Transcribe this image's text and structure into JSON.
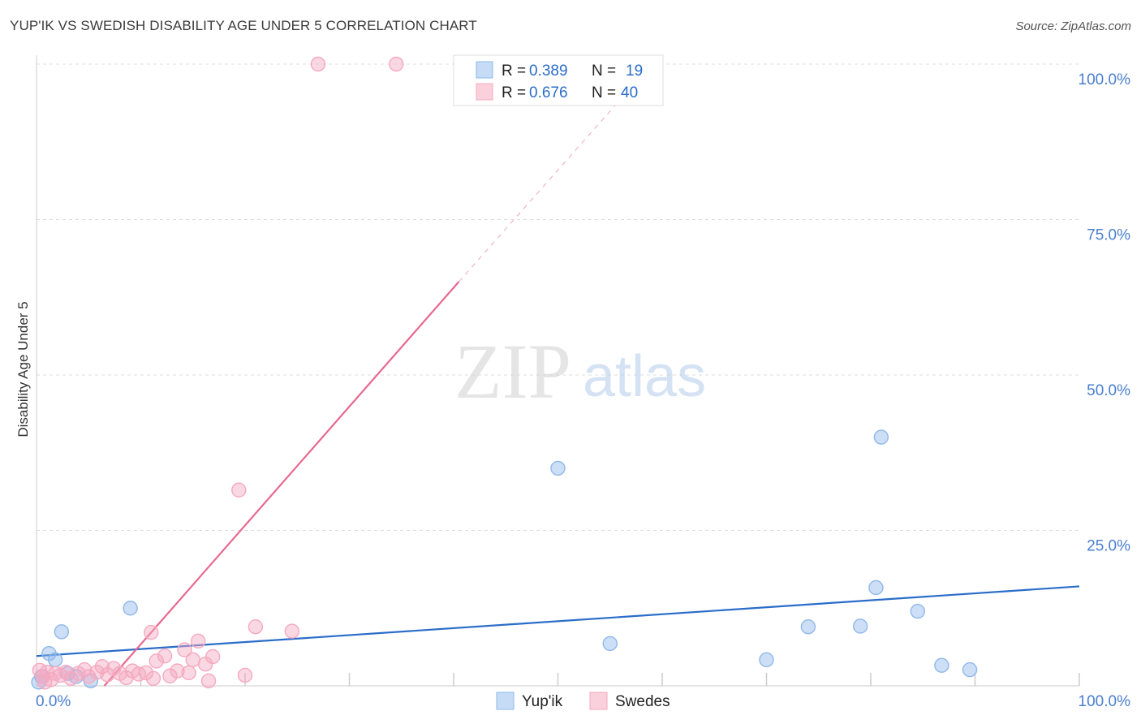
{
  "chart_data": {
    "type": "scatter",
    "title": "YUP'IK VS SWEDISH DISABILITY AGE UNDER 5 CORRELATION CHART",
    "source": "Source: ZipAtlas.com",
    "xlabel": "",
    "ylabel": "Disability Age Under 5",
    "xlim": [
      0,
      100
    ],
    "ylim": [
      0,
      100
    ],
    "x_tick_labels": [
      {
        "value": 0,
        "label": "0.0%"
      },
      {
        "value": 100,
        "label": "100.0%"
      }
    ],
    "y_tick_labels": [
      {
        "value": 25,
        "label": "25.0%"
      },
      {
        "value": 50,
        "label": "50.0%"
      },
      {
        "value": 75,
        "label": "75.0%"
      },
      {
        "value": 100,
        "label": "100.0%"
      }
    ],
    "watermark": {
      "part1": "ZIP",
      "part2": "atlas"
    },
    "legend_position": "top-center",
    "series": [
      {
        "name": "Yup'ik",
        "color": "#8fb8ea",
        "line_color": "#2a6dc9",
        "r_label": "R =",
        "r_value": "0.389",
        "n_label": "N =",
        "n_value": "19",
        "trend": {
          "x0": 0,
          "y0": 4.8,
          "x1": 100,
          "y1": 16.0
        },
        "points": [
          {
            "x": 0.5,
            "y": 1.5
          },
          {
            "x": 1.2,
            "y": 5.2
          },
          {
            "x": 1.8,
            "y": 4.2
          },
          {
            "x": 2.4,
            "y": 8.7
          },
          {
            "x": 3.0,
            "y": 2.0
          },
          {
            "x": 3.8,
            "y": 1.5
          },
          {
            "x": 5.2,
            "y": 0.8
          },
          {
            "x": 9.0,
            "y": 12.5
          },
          {
            "x": 50.0,
            "y": 35.0
          },
          {
            "x": 55.0,
            "y": 6.8
          },
          {
            "x": 70.0,
            "y": 4.2
          },
          {
            "x": 74.0,
            "y": 9.5
          },
          {
            "x": 79.0,
            "y": 9.6
          },
          {
            "x": 80.5,
            "y": 15.8
          },
          {
            "x": 81.0,
            "y": 40.0
          },
          {
            "x": 84.5,
            "y": 12.0
          },
          {
            "x": 86.8,
            "y": 3.3
          },
          {
            "x": 89.5,
            "y": 2.6
          },
          {
            "x": 0.2,
            "y": 0.6
          }
        ]
      },
      {
        "name": "Swedes",
        "color": "#f5a9c0",
        "line_color": "#e8688f",
        "r_label": "R =",
        "r_value": "0.676",
        "n_label": "N =",
        "n_value": "40",
        "trend": {
          "x0": 6.5,
          "y0": 0,
          "x1": 40.5,
          "y1": 65.0
        },
        "trend_dashed": {
          "x0": 40.5,
          "y0": 65.0,
          "x1": 59.0,
          "y1": 100.0
        },
        "points": [
          {
            "x": 0.3,
            "y": 2.5
          },
          {
            "x": 0.6,
            "y": 1.5
          },
          {
            "x": 1.0,
            "y": 2.2
          },
          {
            "x": 1.4,
            "y": 1.0
          },
          {
            "x": 1.8,
            "y": 2.0
          },
          {
            "x": 2.3,
            "y": 1.7
          },
          {
            "x": 2.8,
            "y": 2.2
          },
          {
            "x": 3.3,
            "y": 1.2
          },
          {
            "x": 4.0,
            "y": 2.0
          },
          {
            "x": 4.6,
            "y": 2.6
          },
          {
            "x": 5.0,
            "y": 1.5
          },
          {
            "x": 5.8,
            "y": 2.2
          },
          {
            "x": 6.3,
            "y": 3.1
          },
          {
            "x": 6.8,
            "y": 1.8
          },
          {
            "x": 7.4,
            "y": 2.8
          },
          {
            "x": 8.0,
            "y": 2.0
          },
          {
            "x": 8.6,
            "y": 1.3
          },
          {
            "x": 9.2,
            "y": 2.4
          },
          {
            "x": 9.8,
            "y": 1.9
          },
          {
            "x": 10.5,
            "y": 2.1
          },
          {
            "x": 11.2,
            "y": 1.2
          },
          {
            "x": 11.0,
            "y": 8.6
          },
          {
            "x": 11.5,
            "y": 4.0
          },
          {
            "x": 12.3,
            "y": 4.8
          },
          {
            "x": 12.8,
            "y": 1.6
          },
          {
            "x": 13.5,
            "y": 2.4
          },
          {
            "x": 14.2,
            "y": 5.8
          },
          {
            "x": 14.6,
            "y": 2.1
          },
          {
            "x": 15.0,
            "y": 4.2
          },
          {
            "x": 15.5,
            "y": 7.2
          },
          {
            "x": 16.2,
            "y": 3.5
          },
          {
            "x": 16.5,
            "y": 0.8
          },
          {
            "x": 16.9,
            "y": 4.7
          },
          {
            "x": 19.4,
            "y": 31.5
          },
          {
            "x": 20.0,
            "y": 1.7
          },
          {
            "x": 21.0,
            "y": 9.5
          },
          {
            "x": 24.5,
            "y": 8.8
          },
          {
            "x": 27.0,
            "y": 100.0
          },
          {
            "x": 34.5,
            "y": 100.0
          },
          {
            "x": 0.8,
            "y": 0.6
          }
        ]
      }
    ]
  }
}
